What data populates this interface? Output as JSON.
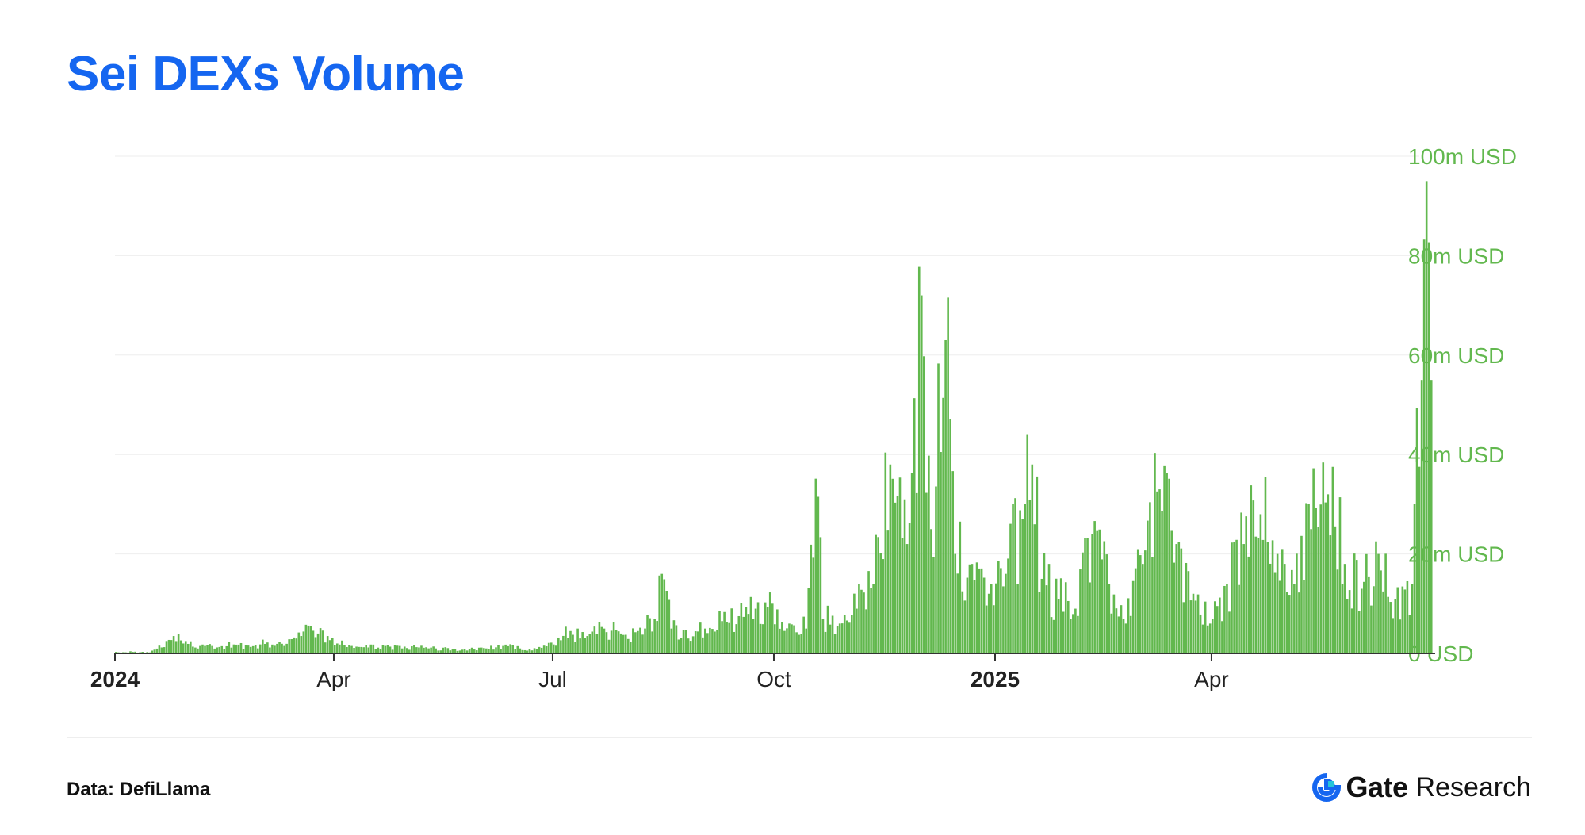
{
  "title": "Sei DEXs Volume",
  "colors": {
    "title": "#1566f0",
    "bar": "#62b84e",
    "axis_label": "#62b84e",
    "grid": "#eeeeee"
  },
  "footer": {
    "source": "Data: DefiLlama",
    "brand_name": "Gate",
    "brand_sub": "Research",
    "brand_icon": "gate-logo-icon"
  },
  "chart_data": {
    "type": "bar",
    "title": "Sei DEXs Volume",
    "ylabel": "",
    "xlabel": "",
    "unit": "USD",
    "ylim": [
      0,
      100
    ],
    "grid": true,
    "y_axis_position": "right",
    "y_ticks": [
      "0 USD",
      "20m USD",
      "40m USD",
      "60m USD",
      "80m USD",
      "100m USD"
    ],
    "x_ticks": [
      {
        "label": "2024",
        "date": "2024-01-01",
        "bold": true
      },
      {
        "label": "Apr",
        "date": "2024-04-01",
        "bold": false
      },
      {
        "label": "Jul",
        "date": "2024-07-01",
        "bold": false
      },
      {
        "label": "Oct",
        "date": "2024-10-01",
        "bold": false
      },
      {
        "label": "2025",
        "date": "2025-01-01",
        "bold": true
      },
      {
        "label": "Apr",
        "date": "2025-04-01",
        "bold": false
      }
    ],
    "series": [
      {
        "values_unit": "m USD",
        "data": [
          [
            "2024-01-01",
            0.3
          ],
          [
            "2024-01-08",
            0.3
          ],
          [
            "2024-01-15",
            0.2
          ],
          [
            "2024-01-22",
            2.5
          ],
          [
            "2024-01-25",
            3.5
          ],
          [
            "2024-01-29",
            2.0
          ],
          [
            "2024-02-05",
            1.5
          ],
          [
            "2024-02-12",
            1.2
          ],
          [
            "2024-02-19",
            1.8
          ],
          [
            "2024-02-26",
            1.3
          ],
          [
            "2024-03-04",
            2.2
          ],
          [
            "2024-03-11",
            1.5
          ],
          [
            "2024-03-18",
            3.5
          ],
          [
            "2024-03-22",
            5.5
          ],
          [
            "2024-03-25",
            4.0
          ],
          [
            "2024-03-29",
            3.5
          ],
          [
            "2024-04-02",
            2.0
          ],
          [
            "2024-04-08",
            1.5
          ],
          [
            "2024-04-15",
            1.2
          ],
          [
            "2024-04-22",
            1.5
          ],
          [
            "2024-04-29",
            1.0
          ],
          [
            "2024-05-06",
            1.2
          ],
          [
            "2024-05-13",
            1.0
          ],
          [
            "2024-05-20",
            0.8
          ],
          [
            "2024-05-27",
            0.8
          ],
          [
            "2024-06-03",
            1.0
          ],
          [
            "2024-06-10",
            1.5
          ],
          [
            "2024-06-17",
            1.0
          ],
          [
            "2024-06-24",
            0.8
          ],
          [
            "2024-07-01",
            1.8
          ],
          [
            "2024-07-08",
            4.5
          ],
          [
            "2024-07-15",
            3.5
          ],
          [
            "2024-07-22",
            5.0
          ],
          [
            "2024-07-29",
            4.0
          ],
          [
            "2024-08-05",
            4.5
          ],
          [
            "2024-08-12",
            7.0
          ],
          [
            "2024-08-15",
            16.0
          ],
          [
            "2024-08-19",
            5.0
          ],
          [
            "2024-08-26",
            3.0
          ],
          [
            "2024-09-02",
            5.0
          ],
          [
            "2024-09-09",
            6.5
          ],
          [
            "2024-09-16",
            7.5
          ],
          [
            "2024-09-23",
            9.0
          ],
          [
            "2024-09-30",
            10.0
          ],
          [
            "2024-10-07",
            6.0
          ],
          [
            "2024-10-14",
            5.0
          ],
          [
            "2024-10-19",
            31.5
          ],
          [
            "2024-10-21",
            7.0
          ],
          [
            "2024-10-28",
            6.0
          ],
          [
            "2024-11-04",
            9.0
          ],
          [
            "2024-11-11",
            14.0
          ],
          [
            "2024-11-18",
            38.0
          ],
          [
            "2024-11-25",
            22.0
          ],
          [
            "2024-12-01",
            72.0
          ],
          [
            "2024-12-05",
            25.0
          ],
          [
            "2024-12-11",
            63.0
          ],
          [
            "2024-12-15",
            20.0
          ],
          [
            "2024-12-22",
            18.0
          ],
          [
            "2024-12-29",
            12.0
          ],
          [
            "2025-01-05",
            16.0
          ],
          [
            "2025-01-12",
            27.0
          ],
          [
            "2025-01-16",
            38.0
          ],
          [
            "2025-01-20",
            15.0
          ],
          [
            "2025-01-27",
            11.0
          ],
          [
            "2025-02-03",
            9.0
          ],
          [
            "2025-02-10",
            24.0
          ],
          [
            "2025-02-17",
            14.0
          ],
          [
            "2025-02-24",
            6.0
          ],
          [
            "2025-03-03",
            18.0
          ],
          [
            "2025-03-10",
            33.0
          ],
          [
            "2025-03-17",
            22.0
          ],
          [
            "2025-03-24",
            12.0
          ],
          [
            "2025-03-31",
            6.0
          ],
          [
            "2025-04-07",
            14.0
          ],
          [
            "2025-04-14",
            22.0
          ],
          [
            "2025-04-21",
            28.0
          ],
          [
            "2025-04-28",
            20.0
          ],
          [
            "2025-05-05",
            14.0
          ],
          [
            "2025-05-12",
            25.0
          ],
          [
            "2025-05-19",
            32.0
          ],
          [
            "2025-05-26",
            18.0
          ],
          [
            "2025-06-02",
            13.0
          ],
          [
            "2025-06-09",
            20.0
          ],
          [
            "2025-06-16",
            11.0
          ],
          [
            "2025-06-23",
            14.0
          ],
          [
            "2025-06-27",
            55.0
          ],
          [
            "2025-06-29",
            95.0
          ],
          [
            "2025-07-01",
            55.0
          ]
        ]
      }
    ]
  }
}
